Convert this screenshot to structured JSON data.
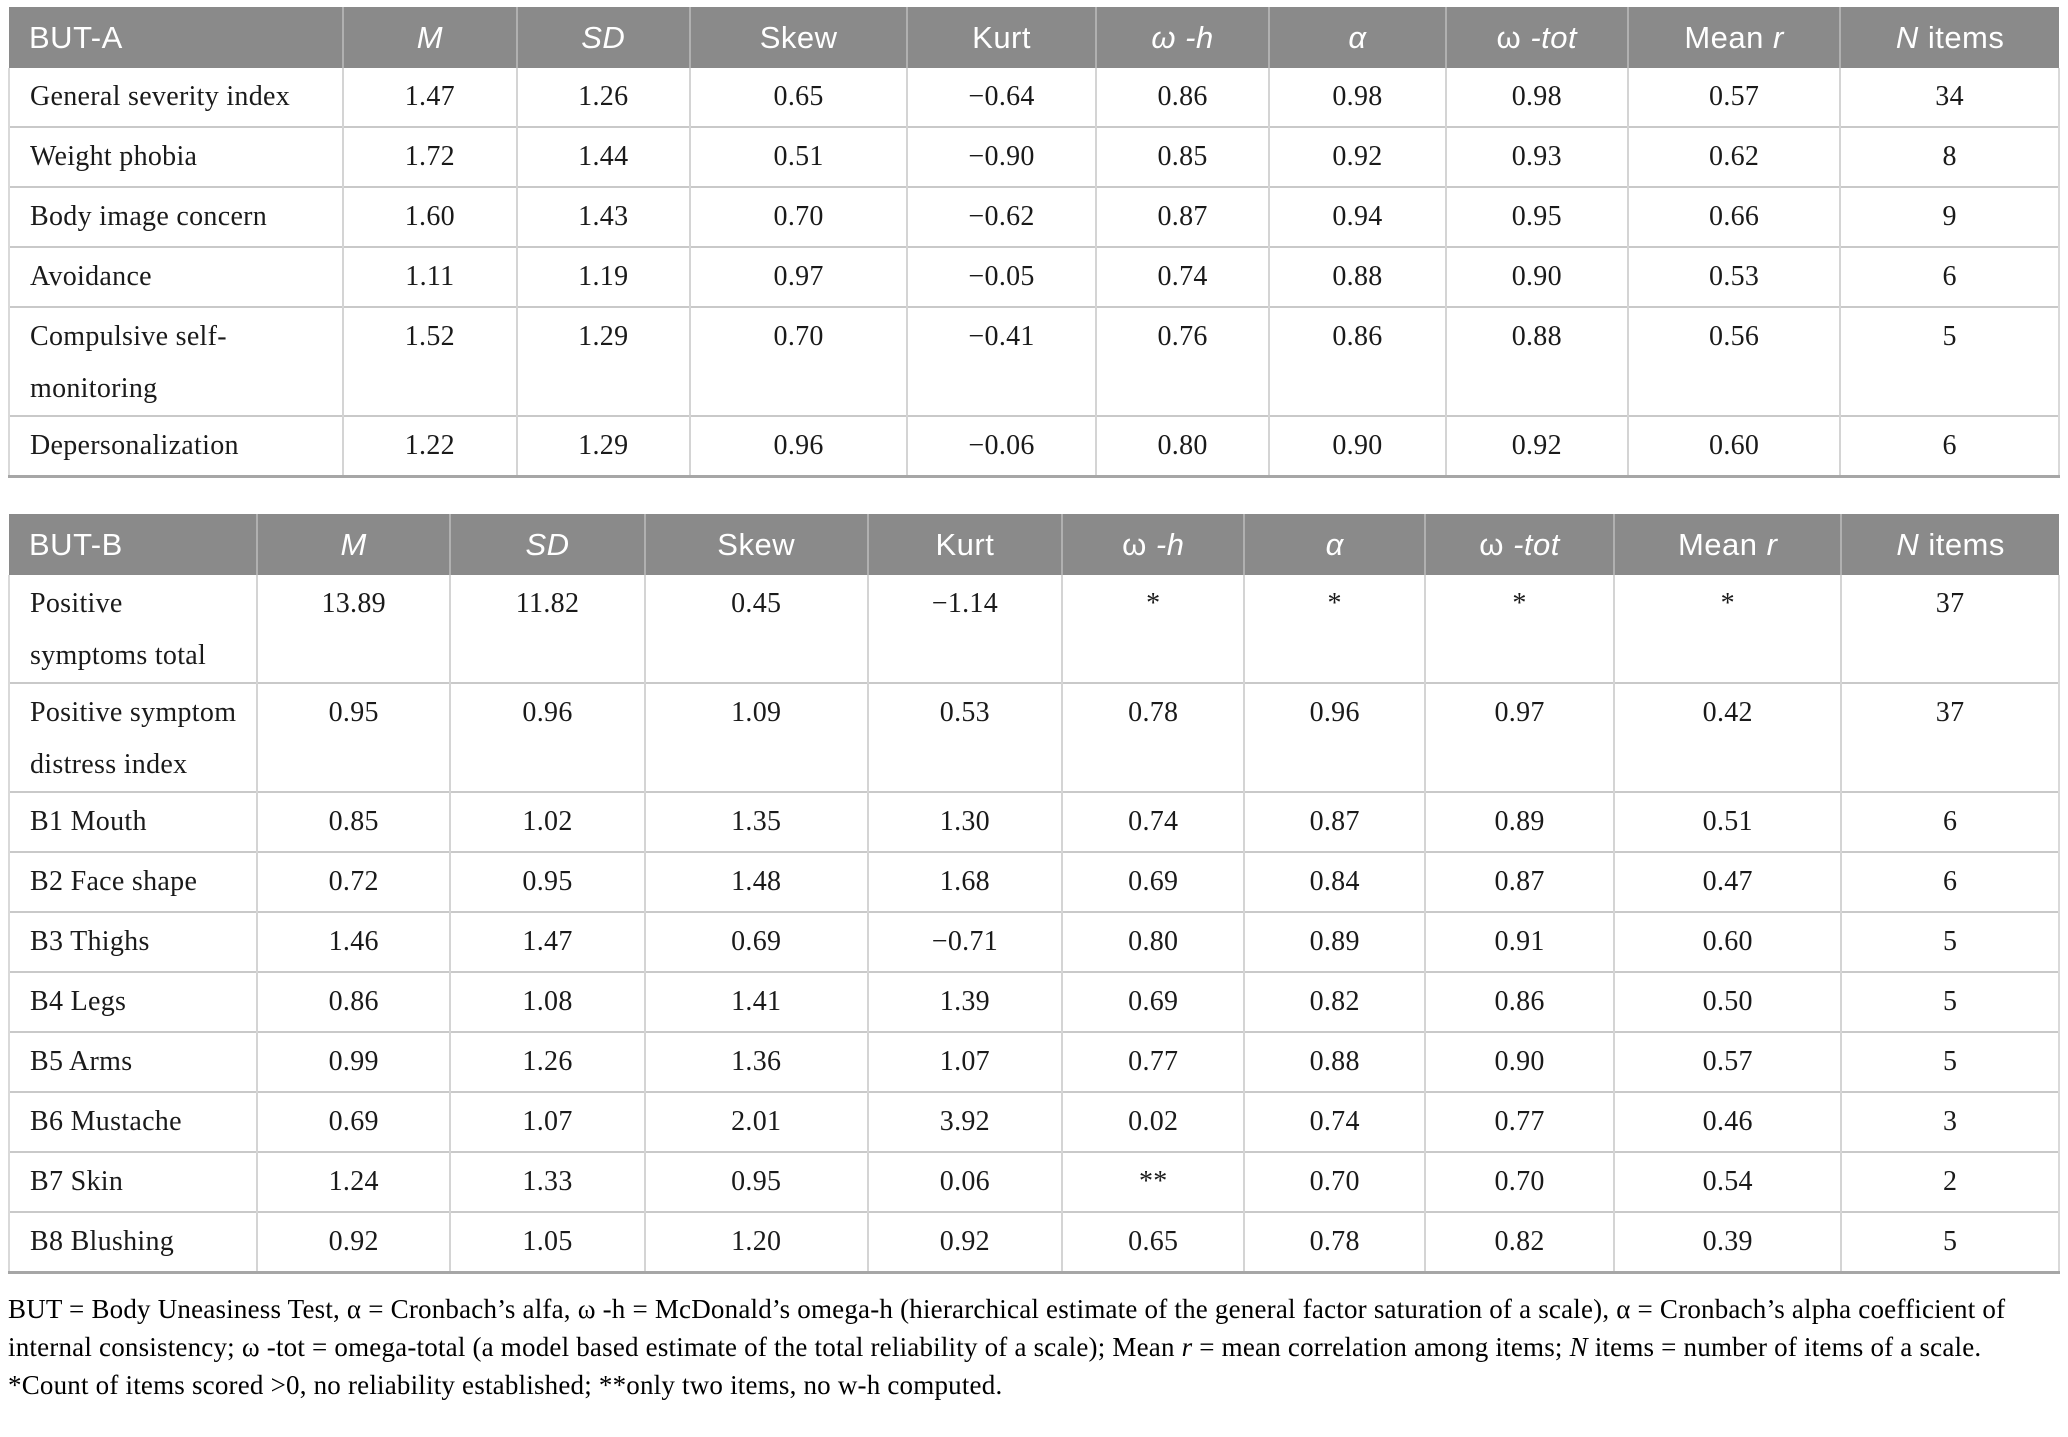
{
  "colors": {
    "header_bg": "#8A8A8A",
    "header_text": "#FFFFFF",
    "row_border": "#C9C9C9",
    "table_bottom_border": "#A6A6A6",
    "body_text": "#1A1A1A"
  },
  "table_a": {
    "title": "BUT-A",
    "columns": [
      [
        {
          "t": "M",
          "i": true
        }
      ],
      [
        {
          "t": "SD",
          "i": true
        }
      ],
      [
        {
          "t": "Skew"
        }
      ],
      [
        {
          "t": "Kurt"
        }
      ],
      [
        {
          "t": "ω ",
          "i": true
        },
        {
          "t": "-h",
          "i": true
        }
      ],
      [
        {
          "t": "α",
          "i": true
        }
      ],
      [
        {
          "t": "ω "
        },
        {
          "t": "-tot",
          "i": true
        }
      ],
      [
        {
          "t": "Mean "
        },
        {
          "t": "r",
          "i": true
        }
      ],
      [
        {
          "t": "N",
          "i": true
        },
        {
          "t": " items"
        }
      ]
    ],
    "rows": [
      {
        "label": "General severity index",
        "values": [
          "1.47",
          "1.26",
          "0.65",
          "−0.64",
          "0.86",
          "0.98",
          "0.98",
          "0.57",
          "34"
        ]
      },
      {
        "label": "Weight phobia",
        "values": [
          "1.72",
          "1.44",
          "0.51",
          "−0.90",
          "0.85",
          "0.92",
          "0.93",
          "0.62",
          "8"
        ]
      },
      {
        "label": "Body image concern",
        "values": [
          "1.60",
          "1.43",
          "0.70",
          "−0.62",
          "0.87",
          "0.94",
          "0.95",
          "0.66",
          "9"
        ]
      },
      {
        "label": "Avoidance",
        "values": [
          "1.11",
          "1.19",
          "0.97",
          "−0.05",
          "0.74",
          "0.88",
          "0.90",
          "0.53",
          "6"
        ]
      },
      {
        "label": "Compulsive self-\nmonitoring",
        "tall": true,
        "values": [
          "1.52",
          "1.29",
          "0.70",
          "−0.41",
          "0.76",
          "0.86",
          "0.88",
          "0.56",
          "5"
        ]
      },
      {
        "label": "Depersonalization",
        "values": [
          "1.22",
          "1.29",
          "0.96",
          "−0.06",
          "0.80",
          "0.90",
          "0.92",
          "0.60",
          "6"
        ]
      }
    ]
  },
  "table_b": {
    "title": "BUT-B",
    "columns": [
      [
        {
          "t": "M",
          "i": true
        }
      ],
      [
        {
          "t": "SD",
          "i": true
        }
      ],
      [
        {
          "t": "Skew"
        }
      ],
      [
        {
          "t": "Kurt"
        }
      ],
      [
        {
          "t": "ω "
        },
        {
          "t": "-h",
          "i": true
        }
      ],
      [
        {
          "t": "α",
          "i": true
        }
      ],
      [
        {
          "t": "ω "
        },
        {
          "t": "-tot",
          "i": true
        }
      ],
      [
        {
          "t": "Mean "
        },
        {
          "t": "r",
          "i": true
        }
      ],
      [
        {
          "t": "N",
          "i": true
        },
        {
          "t": " items"
        }
      ]
    ],
    "rows": [
      {
        "label": "Positive\nsymptoms total",
        "tall": true,
        "values": [
          "13.89",
          "11.82",
          "0.45",
          "−1.14",
          "*",
          "*",
          "*",
          "*",
          "37"
        ]
      },
      {
        "label": "Positive symptom\ndistress index",
        "tall": true,
        "values": [
          "0.95",
          "0.96",
          "1.09",
          "0.53",
          "0.78",
          "0.96",
          "0.97",
          "0.42",
          "37"
        ]
      },
      {
        "label": "B1 Mouth",
        "values": [
          "0.85",
          "1.02",
          "1.35",
          "1.30",
          "0.74",
          "0.87",
          "0.89",
          "0.51",
          "6"
        ]
      },
      {
        "label": "B2 Face shape",
        "values": [
          "0.72",
          "0.95",
          "1.48",
          "1.68",
          "0.69",
          "0.84",
          "0.87",
          "0.47",
          "6"
        ]
      },
      {
        "label": "B3 Thighs",
        "values": [
          "1.46",
          "1.47",
          "0.69",
          "−0.71",
          "0.80",
          "0.89",
          "0.91",
          "0.60",
          "5"
        ]
      },
      {
        "label": "B4 Legs",
        "values": [
          "0.86",
          "1.08",
          "1.41",
          "1.39",
          "0.69",
          "0.82",
          "0.86",
          "0.50",
          "5"
        ]
      },
      {
        "label": "B5 Arms",
        "values": [
          "0.99",
          "1.26",
          "1.36",
          "1.07",
          "0.77",
          "0.88",
          "0.90",
          "0.57",
          "5"
        ]
      },
      {
        "label": "B6 Mustache",
        "values": [
          "0.69",
          "1.07",
          "2.01",
          "3.92",
          "0.02",
          "0.74",
          "0.77",
          "0.46",
          "3"
        ]
      },
      {
        "label": "B7 Skin",
        "values": [
          "1.24",
          "1.33",
          "0.95",
          "0.06",
          "**",
          "0.70",
          "0.70",
          "0.54",
          "2"
        ]
      },
      {
        "label": "B8 Blushing",
        "values": [
          "0.92",
          "1.05",
          "1.20",
          "0.92",
          "0.65",
          "0.78",
          "0.82",
          "0.39",
          "5"
        ]
      }
    ]
  },
  "footnote": {
    "segments": [
      {
        "t": "BUT = Body Uneasiness Test, α = Cronbach’s alfa, ω -h = McDonald’s omega-h (hierarchical estimate of the general factor saturation of a scale), α = Cronbach’s alpha coefficient of internal consistency; ω -tot = omega-total (a model based estimate of the total reliability of a scale); Mean "
      },
      {
        "t": "r",
        "i": true
      },
      {
        "t": " = mean correlation among items; "
      },
      {
        "t": "N",
        "i": true
      },
      {
        "t": " items = number of items of a scale. *Count of items scored >0, no reliability established; **only two items, no w-h computed."
      }
    ]
  }
}
